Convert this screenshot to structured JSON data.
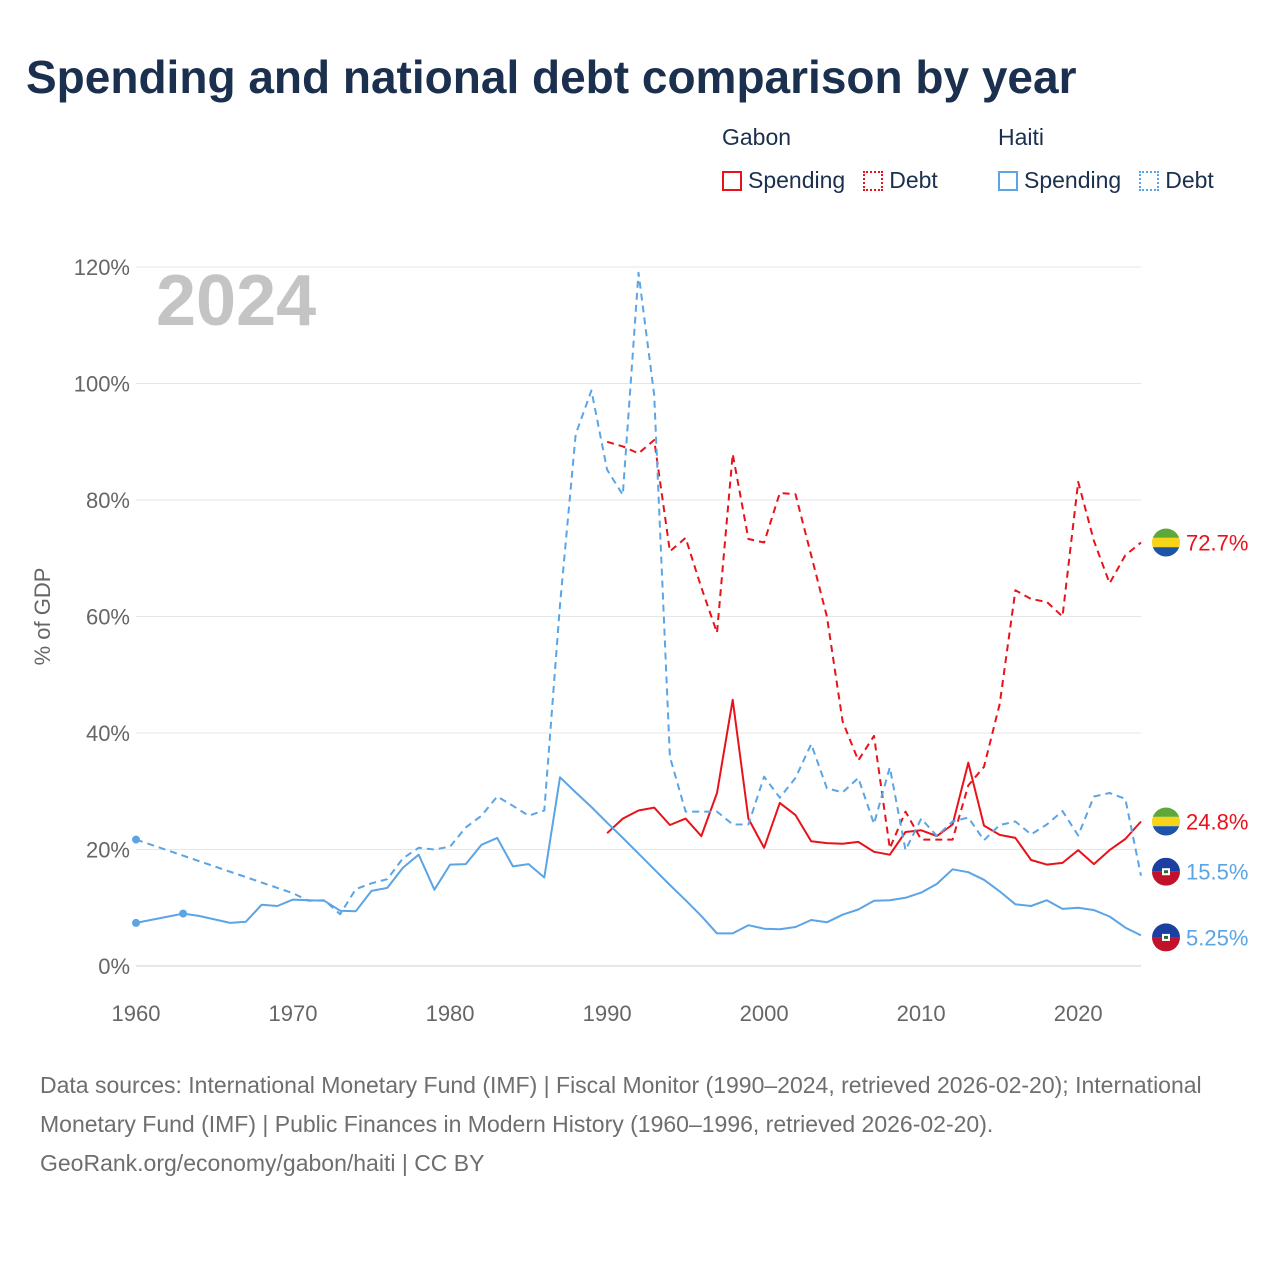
{
  "title": "Spending and national debt comparison by year",
  "legend": {
    "groups": [
      {
        "name": "Gabon",
        "spending_label": "Spending",
        "debt_label": "Debt",
        "color": "#e8131a"
      },
      {
        "name": "Haiti",
        "spending_label": "Spending",
        "debt_label": "Debt",
        "color": "#5ba4e5"
      }
    ]
  },
  "footer": {
    "sources": "Data sources: International Monetary Fund (IMF) | Fiscal Monitor (1990–2024, retrieved 2026-02-20); International Monetary Fund (IMF) | Public Finances in Modern History (1960–1996, retrieved 2026-02-20).",
    "credit": "GeoRank.org/economy/gabon/haiti | CC BY"
  },
  "chart_data": {
    "type": "line",
    "year_label": "2024",
    "ylabel": "% of GDP",
    "xlabel": "",
    "xlim": [
      1960,
      2024
    ],
    "ylim": [
      0,
      120
    ],
    "x_ticks": [
      1960,
      1970,
      1980,
      1990,
      2000,
      2010,
      2020
    ],
    "y_ticks": [
      0,
      20,
      40,
      60,
      80,
      100,
      120
    ],
    "y_tick_labels": [
      "0%",
      "20%",
      "40%",
      "60%",
      "80%",
      "100%",
      "120%"
    ],
    "grid": true,
    "series": [
      {
        "name": "Gabon Debt",
        "country": "Gabon",
        "measure": "Debt",
        "color": "#e8131a",
        "dashed": true,
        "end_label": "72.7%",
        "x": [
          1990,
          1991,
          1992,
          1993,
          1994,
          1995,
          1996,
          1997,
          1998,
          1999,
          2000,
          2001,
          2002,
          2003,
          2004,
          2005,
          2006,
          2007,
          2008,
          2009,
          2010,
          2011,
          2012,
          2013,
          2014,
          2015,
          2016,
          2017,
          2018,
          2019,
          2020,
          2021,
          2022,
          2023,
          2024
        ],
        "values": [
          90.0,
          89.2,
          88.0,
          90.3,
          71.2,
          73.5,
          65.0,
          57.2,
          87.9,
          73.3,
          72.7,
          81.2,
          81.0,
          70.5,
          60.0,
          42.0,
          35.3,
          39.5,
          20.2,
          26.5,
          21.7,
          21.7,
          21.7,
          31.0,
          34.2,
          45.0,
          64.5,
          63.0,
          62.5,
          60.0,
          83.1,
          73.0,
          65.7,
          70.5,
          72.7
        ]
      },
      {
        "name": "Gabon Spending",
        "country": "Gabon",
        "measure": "Spending",
        "color": "#e8131a",
        "dashed": false,
        "end_label": "24.8%",
        "x": [
          1990,
          1991,
          1992,
          1993,
          1994,
          1995,
          1996,
          1997,
          1998,
          1999,
          2000,
          2001,
          2002,
          2003,
          2004,
          2005,
          2006,
          2007,
          2008,
          2009,
          2010,
          2011,
          2012,
          2013,
          2014,
          2015,
          2016,
          2017,
          2018,
          2019,
          2020,
          2021,
          2022,
          2023,
          2024
        ],
        "values": [
          22.8,
          25.3,
          26.7,
          27.2,
          24.2,
          25.3,
          22.3,
          29.7,
          45.7,
          25.3,
          20.3,
          28.0,
          25.9,
          21.4,
          21.1,
          21.0,
          21.3,
          19.6,
          19.1,
          23.0,
          23.3,
          22.3,
          24.3,
          34.9,
          24.1,
          22.5,
          22.0,
          18.2,
          17.4,
          17.7,
          19.9,
          17.5,
          19.9,
          21.8,
          24.8
        ]
      },
      {
        "name": "Haiti Debt",
        "country": "Haiti",
        "measure": "Debt",
        "color": "#5ba4e5",
        "dashed": true,
        "end_label": "15.5%",
        "x": [
          1960,
          1970,
          1971,
          1972,
          1973,
          1974,
          1975,
          1976,
          1977,
          1978,
          1979,
          1980,
          1981,
          1982,
          1983,
          1984,
          1985,
          1986,
          1987,
          1988,
          1989,
          1990,
          1991,
          1992,
          1993,
          1994,
          1995,
          1996,
          1997,
          1998,
          1999,
          2000,
          2001,
          2002,
          2003,
          2004,
          2005,
          2006,
          2007,
          2008,
          2009,
          2010,
          2011,
          2012,
          2013,
          2014,
          2015,
          2016,
          2017,
          2018,
          2019,
          2020,
          2021,
          2022,
          2023,
          2024
        ],
        "values": [
          21.7,
          12.5,
          11.2,
          11.3,
          8.9,
          13.2,
          14.2,
          14.9,
          18.5,
          20.3,
          20.0,
          20.5,
          23.8,
          25.8,
          29.1,
          27.5,
          25.8,
          26.7,
          62.0,
          91.3,
          98.8,
          85.2,
          80.9,
          119.0,
          98.0,
          35.9,
          26.5,
          26.5,
          26.5,
          24.3,
          24.3,
          32.5,
          28.9,
          32.3,
          38.1,
          30.5,
          29.8,
          32.3,
          24.4,
          34.1,
          19.9,
          25.3,
          22.3,
          24.8,
          25.5,
          21.6,
          24.2,
          24.8,
          22.6,
          24.3,
          26.6,
          22.4,
          29.1,
          29.7,
          28.7,
          15.5
        ]
      },
      {
        "name": "Haiti Spending",
        "country": "Haiti",
        "measure": "Spending",
        "color": "#5ba4e5",
        "dashed": false,
        "end_label": "5.25%",
        "x": [
          1960,
          1963,
          1964,
          1965,
          1966,
          1967,
          1968,
          1969,
          1970,
          1971,
          1972,
          1973,
          1974,
          1975,
          1976,
          1977,
          1978,
          1979,
          1980,
          1981,
          1982,
          1983,
          1984,
          1985,
          1986,
          1987,
          1988,
          1989,
          1990,
          1991,
          1992,
          1993,
          1994,
          1995,
          1996,
          1997,
          1998,
          1999,
          2000,
          2001,
          2002,
          2003,
          2004,
          2005,
          2006,
          2007,
          2008,
          2009,
          2010,
          2011,
          2012,
          2013,
          2014,
          2015,
          2016,
          2017,
          2018,
          2019,
          2020,
          2021,
          2022,
          2023,
          2024
        ],
        "values": [
          7.4,
          9.0,
          8.6,
          8.0,
          7.4,
          7.6,
          10.5,
          10.3,
          11.4,
          11.3,
          11.2,
          9.5,
          9.4,
          12.9,
          13.4,
          16.9,
          19.1,
          13.1,
          17.4,
          17.5,
          20.8,
          22.0,
          17.1,
          17.5,
          15.2,
          32.4,
          29.8,
          27.3,
          24.6,
          22.0,
          19.3,
          16.6,
          13.9,
          11.3,
          8.6,
          5.6,
          5.6,
          7.0,
          6.4,
          6.3,
          6.7,
          7.9,
          7.5,
          8.8,
          9.7,
          11.2,
          11.3,
          11.7,
          12.6,
          14.1,
          16.6,
          16.1,
          14.8,
          12.8,
          10.6,
          10.3,
          11.3,
          9.8,
          10.0,
          9.6,
          8.5,
          6.6,
          5.25
        ]
      }
    ]
  }
}
